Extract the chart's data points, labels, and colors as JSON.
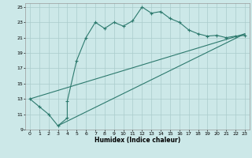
{
  "title": "",
  "xlabel": "Humidex (Indice chaleur)",
  "bg_color": "#cce8e8",
  "grid_color": "#aacccc",
  "line_color": "#2d7a6e",
  "xlim": [
    -0.5,
    23.5
  ],
  "ylim": [
    9,
    25.5
  ],
  "xticks": [
    0,
    1,
    2,
    3,
    4,
    5,
    6,
    7,
    8,
    9,
    10,
    11,
    12,
    13,
    14,
    15,
    16,
    17,
    18,
    19,
    20,
    21,
    22,
    23
  ],
  "yticks": [
    9,
    11,
    13,
    15,
    17,
    19,
    21,
    23,
    25
  ],
  "curve_x": [
    0,
    1,
    2,
    3,
    4,
    4,
    5,
    6,
    7,
    8,
    9,
    10,
    11,
    12,
    13,
    14,
    15,
    16,
    17,
    18,
    19,
    20,
    21,
    22,
    23
  ],
  "curve_y": [
    13,
    12,
    11,
    9.5,
    10.5,
    12.7,
    18,
    21,
    23,
    22.2,
    23,
    22.5,
    23.2,
    25,
    24.2,
    24.4,
    23.5,
    23,
    22,
    21.5,
    21.2,
    21.3,
    21.0,
    21.2,
    21.3
  ],
  "line1_x": [
    0,
    23
  ],
  "line1_y": [
    13,
    21.5
  ],
  "line2_x": [
    3,
    23
  ],
  "line2_y": [
    9.5,
    21.5
  ]
}
